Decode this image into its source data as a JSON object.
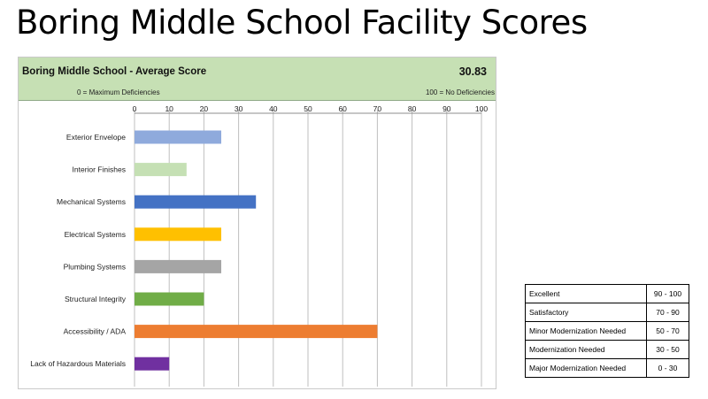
{
  "slide": {
    "title": "Boring Middle School Facility Scores"
  },
  "score_header": {
    "title": "Boring Middle School - Average Score",
    "value": "30.83",
    "scale_min_label": "0 = Maximum Deficiencies",
    "scale_max_label": "100 = No Deficiencies",
    "background": "#c6e0b4"
  },
  "chart_data": {
    "type": "bar",
    "orientation": "horizontal",
    "title": "",
    "xlabel": "",
    "ylabel": "",
    "xlim": [
      0,
      100
    ],
    "ticks": [
      0,
      10,
      20,
      30,
      40,
      50,
      60,
      70,
      80,
      90,
      100
    ],
    "grid": true,
    "categories": [
      "Exterior Envelope",
      "Interior Finishes",
      "Mechanical Systems",
      "Electrical Systems",
      "Plumbing Systems",
      "Structural Integrity",
      "Accessibility / ADA",
      "Lack of Hazardous Materials"
    ],
    "values": [
      25,
      15,
      35,
      25,
      25,
      20,
      70,
      10
    ],
    "colors": [
      "#8faadc",
      "#c5e0b4",
      "#4472c4",
      "#ffc000",
      "#a5a5a5",
      "#70ad47",
      "#ed7d31",
      "#7030a0"
    ]
  },
  "legend_table": [
    {
      "label": "Excellent",
      "range": "90 - 100"
    },
    {
      "label": "Satisfactory",
      "range": "70 - 90"
    },
    {
      "label": "Minor Modernization Needed",
      "range": "50 - 70"
    },
    {
      "label": "Modernization Needed",
      "range": "30 - 50"
    },
    {
      "label": "Major Modernization Needed",
      "range": "0 - 30"
    }
  ]
}
